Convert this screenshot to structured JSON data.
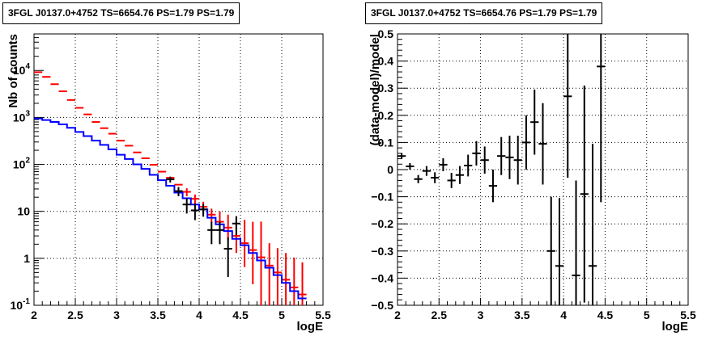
{
  "chart_data": [
    {
      "type": "line",
      "title": "3FGL J0137.0+4752 TS=6654.76 PS=1.79 PS=1.79",
      "xlabel": "logE",
      "ylabel": "Nb of counts",
      "xlim": [
        2,
        5.5
      ],
      "ylim": [
        0.1,
        60000
      ],
      "yscale": "log",
      "grid": true,
      "x_ticks": [
        "2",
        "2.5",
        "3",
        "3.5",
        "4",
        "4.5",
        "5",
        "5.5"
      ],
      "y_ticks": [
        {
          "base": "10",
          "exp": "-1"
        },
        {
          "base": "1",
          "exp": ""
        },
        {
          "base": "10",
          "exp": ""
        },
        {
          "base": "10",
          "exp": "2"
        },
        {
          "base": "10",
          "exp": "3"
        },
        {
          "base": "10",
          "exp": "4"
        }
      ],
      "series": [
        {
          "color": "#ff0000",
          "style": "errorbar",
          "x": [
            2.05,
            2.15,
            2.25,
            2.35,
            2.45,
            2.55,
            2.65,
            2.75,
            2.85,
            2.95,
            3.05,
            3.15,
            3.25,
            3.35,
            3.45,
            3.55,
            3.65,
            3.75,
            3.85,
            3.95,
            4.05,
            4.15,
            4.25,
            4.35,
            4.45,
            4.55,
            4.65,
            4.75,
            4.85,
            4.95,
            5.05,
            5.15,
            5.25
          ],
          "y": [
            9200,
            7300,
            5100,
            3600,
            2350,
            1600,
            1160,
            800,
            590,
            450,
            320,
            250,
            180,
            135,
            98,
            70,
            52,
            37,
            26,
            18.5,
            12.5,
            8.5,
            6,
            4.5,
            3,
            2.1,
            1.5,
            1.05,
            0.7,
            0.5,
            0.35,
            0.24,
            0.17
          ],
          "yerr_low": [
            0,
            0,
            0,
            0,
            0,
            0,
            0,
            0,
            0,
            0,
            0,
            0,
            0,
            0,
            0,
            0,
            0,
            0,
            5,
            4.3,
            3.5,
            2.9,
            2.4,
            2.1,
            1.7,
            1.45,
            1.22,
            1.02,
            0.6,
            0.4,
            0.28,
            0.2,
            0.15
          ],
          "yerr_high": [
            0,
            0,
            0,
            0,
            0,
            0,
            0,
            0,
            0,
            0,
            0,
            0,
            0,
            0,
            0,
            0,
            0,
            0,
            5,
            4.3,
            3.5,
            2.9,
            4,
            4,
            4.5,
            4.5,
            4.5,
            5,
            1.4,
            1.15,
            0.95,
            0.8,
            0.65
          ]
        },
        {
          "color": "#0000ff",
          "style": "step",
          "x": [
            2.0,
            2.1,
            2.2,
            2.3,
            2.4,
            2.5,
            2.6,
            2.7,
            2.8,
            2.9,
            3.0,
            3.1,
            3.2,
            3.3,
            3.4,
            3.5,
            3.6,
            3.7,
            3.8,
            3.9,
            4.0,
            4.1,
            4.2,
            4.3,
            4.4,
            4.5,
            4.6,
            4.7,
            4.8,
            4.9,
            5.0,
            5.1,
            5.2
          ],
          "y": [
            950,
            880,
            800,
            710,
            600,
            490,
            400,
            320,
            260,
            210,
            160,
            130,
            100,
            80,
            60,
            46,
            35,
            25,
            19,
            14,
            11,
            7.3,
            5.3,
            3.8,
            2.6,
            1.9,
            1.3,
            0.9,
            0.63,
            0.44,
            0.3,
            0.2,
            0.14
          ]
        },
        {
          "color": "#000000",
          "style": "errorbar",
          "x": [
            3.65,
            3.75,
            3.85,
            3.95,
            4.05,
            4.15,
            4.25,
            4.35,
            4.45
          ],
          "y": [
            48,
            27,
            14,
            10.5,
            11,
            4,
            4,
            1.6,
            5.5
          ],
          "yerr_low": [
            7,
            6,
            5,
            4,
            3.3,
            2,
            2,
            1.2,
            2.4
          ],
          "yerr_high": [
            7,
            6,
            5,
            4,
            3.3,
            2,
            2,
            1.2,
            2.4
          ]
        }
      ]
    },
    {
      "type": "scatter",
      "title": "3FGL J0137.0+4752 TS=6654.76 PS=1.79 PS=1.79",
      "xlabel": "logE",
      "ylabel": "(data-model)/model",
      "xlim": [
        2,
        5.5
      ],
      "ylim": [
        -0.5,
        0.5
      ],
      "grid": true,
      "x_ticks": [
        "2",
        "2.5",
        "3",
        "3.5",
        "4",
        "4.5",
        "5",
        "5.5"
      ],
      "y_ticks": [
        "−0.5",
        "−0.4",
        "−0.3",
        "−0.2",
        "−0.1",
        "0",
        "0.1",
        "0.2",
        "0.3",
        "0.4",
        "0.5"
      ],
      "series": [
        {
          "color": "#000000",
          "style": "errorbar",
          "x": [
            2.05,
            2.15,
            2.25,
            2.35,
            2.45,
            2.55,
            2.65,
            2.75,
            2.85,
            2.95,
            3.05,
            3.15,
            3.25,
            3.35,
            3.45,
            3.55,
            3.65,
            3.75,
            3.85,
            3.95,
            4.05,
            4.15,
            4.25,
            4.35,
            4.45
          ],
          "y": [
            0.05,
            0.012,
            -0.035,
            -0.005,
            -0.03,
            0.018,
            -0.04,
            -0.02,
            0.015,
            0.06,
            0.035,
            -0.06,
            0.05,
            0.045,
            0.035,
            0.1,
            0.175,
            0.095,
            -0.3,
            -0.355,
            0.27,
            -0.39,
            -0.09,
            -0.355,
            0.38
          ],
          "yerr": [
            0.01,
            0.012,
            0.015,
            0.018,
            0.02,
            0.024,
            0.028,
            0.033,
            0.04,
            0.045,
            0.05,
            0.06,
            0.07,
            0.08,
            0.09,
            0.1,
            0.12,
            0.15,
            0.2,
            0.25,
            0.3,
            0.35,
            0.4,
            0.45,
            0.5
          ]
        }
      ]
    }
  ]
}
